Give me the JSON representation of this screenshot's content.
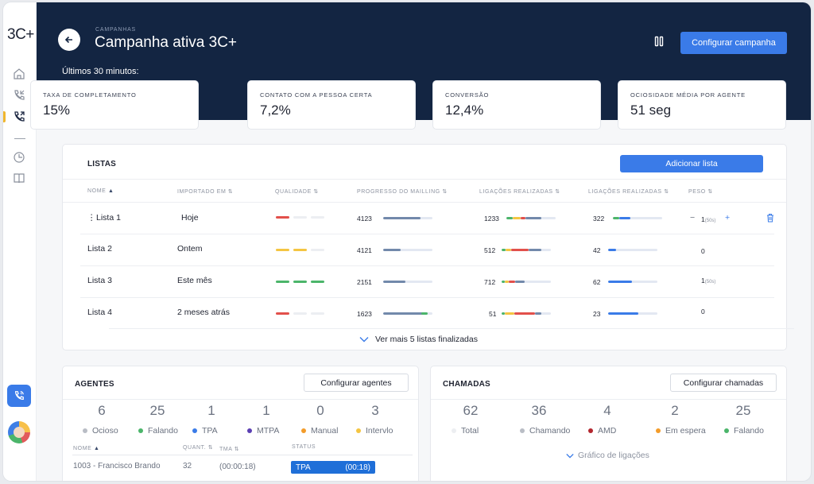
{
  "sidebar": {
    "logo": "3C+"
  },
  "header": {
    "breadcrumb": "CAMPANHAS",
    "title": "Campanha ativa 3C+",
    "configure_button": "Configurar campanha",
    "period_label": "Últimos 30 minutos:"
  },
  "kpis": [
    {
      "label": "TAXA DE COMPLETAMENTO",
      "value": "15%"
    },
    {
      "label": "CONTATO COM A PESSOA CERTA",
      "value": "7,2%"
    },
    {
      "label": "CONVERSÃO",
      "value": "12,4%"
    },
    {
      "label": "OCIOSIDADE MÉDIA POR AGENTE",
      "value": "51 seg"
    }
  ],
  "lists": {
    "title": "LISTAS",
    "add_button": "Adicionar lista",
    "columns": [
      "NOME",
      "IMPORTADO EM",
      "QUALIDADE",
      "PROGRESSO DO MAILLING",
      "LIGAÇÕES REALIZADAS",
      "LIGAÇÕES REALIZADAS",
      "PESO"
    ],
    "rows": [
      {
        "name": "Lista 1",
        "imported": "Hoje",
        "progress": "4123",
        "calls_a": "1233",
        "calls_b": "322",
        "weight": "1",
        "weight_note": "(50s)"
      },
      {
        "name": "Lista 2",
        "imported": "Ontem",
        "progress": "4121",
        "calls_a": "512",
        "calls_b": "42",
        "weight": "0",
        "weight_note": ""
      },
      {
        "name": "Lista 3",
        "imported": "Este mês",
        "progress": "2151",
        "calls_a": "712",
        "calls_b": "62",
        "weight": "1",
        "weight_note": "(50s)"
      },
      {
        "name": "Lista 4",
        "imported": "2 meses atrás",
        "progress": "1623",
        "calls_a": "51",
        "calls_b": "23",
        "weight": "0",
        "weight_note": ""
      }
    ],
    "see_more": "Ver mais 5 listas finalizadas"
  },
  "agents": {
    "title": "AGENTES",
    "configure_button": "Configurar agentes",
    "stats": [
      {
        "value": "6",
        "label": "Ocioso",
        "color": "#b9bdc5"
      },
      {
        "value": "25",
        "label": "Falando",
        "color": "#4bb56a"
      },
      {
        "value": "1",
        "label": "TPA",
        "color": "#3a7be8"
      },
      {
        "value": "1",
        "label": "MTPA",
        "color": "#5b3fb3"
      },
      {
        "value": "0",
        "label": "Manual",
        "color": "#f39c2a"
      },
      {
        "value": "3",
        "label": "Intervlo",
        "color": "#f4c542"
      }
    ],
    "columns": [
      "NOME",
      "QUANT.",
      "TMA",
      "STATUS"
    ],
    "row": {
      "name": "1003 - Francisco Brando",
      "quant": "32",
      "tma": "(00:00:18)",
      "status": "TPA",
      "status_time": "(00:18)"
    }
  },
  "calls": {
    "title": "CHAMADAS",
    "configure_button": "Configurar chamadas",
    "stats": [
      {
        "value": "62",
        "label": "Total",
        "color": "#eceef1"
      },
      {
        "value": "36",
        "label": "Chamando",
        "color": "#b9bdc5"
      },
      {
        "value": "4",
        "label": "AMD",
        "color": "#b3262e"
      },
      {
        "value": "2",
        "label": "Em espera",
        "color": "#f39c2a"
      },
      {
        "value": "25",
        "label": "Falando",
        "color": "#4bb56a"
      }
    ],
    "chart_toggle": "Gráfico de ligações"
  }
}
